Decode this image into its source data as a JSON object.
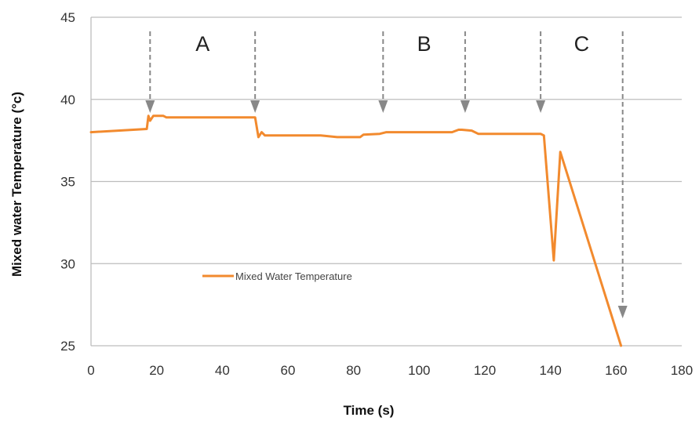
{
  "chart_data": {
    "type": "line",
    "title": "",
    "xlabel": "Time (s)",
    "ylabel": "Mixed water Temperature (°c)",
    "xlim": [
      0,
      180
    ],
    "ylim": [
      25,
      45
    ],
    "xticks": [
      0,
      20,
      40,
      60,
      80,
      100,
      120,
      140,
      160,
      180
    ],
    "yticks": [
      25,
      30,
      35,
      40,
      45
    ],
    "grid": "horizontal",
    "legend_position": "lower-left",
    "colors": {
      "series": "#F28A2E",
      "marker": "#888888",
      "grid": "#BDBDBD"
    },
    "series": [
      {
        "name": "Mixed Water Temperature",
        "x": [
          0,
          17,
          17.5,
          18,
          19,
          20,
          22,
          23,
          50,
          51,
          52,
          53,
          60,
          70,
          75,
          82,
          83,
          88,
          90,
          100,
          110,
          112,
          113,
          116,
          118,
          120,
          130,
          137,
          138,
          141,
          143,
          161.5
        ],
        "y": [
          38,
          38.2,
          39,
          38.7,
          39,
          39,
          39,
          38.9,
          38.9,
          37.7,
          38,
          37.8,
          37.8,
          37.8,
          37.7,
          37.7,
          37.85,
          37.9,
          38,
          38,
          38,
          38.15,
          38.15,
          38.1,
          37.9,
          37.9,
          37.9,
          37.9,
          37.8,
          30.2,
          36.8,
          25
        ]
      }
    ],
    "annotations": {
      "arrows_x": [
        18,
        50,
        89,
        114,
        137,
        162
      ],
      "regions": [
        {
          "label": "A",
          "x": 34
        },
        {
          "label": "B",
          "x": 101.5
        },
        {
          "label": "C",
          "x": 149.5
        }
      ]
    }
  }
}
